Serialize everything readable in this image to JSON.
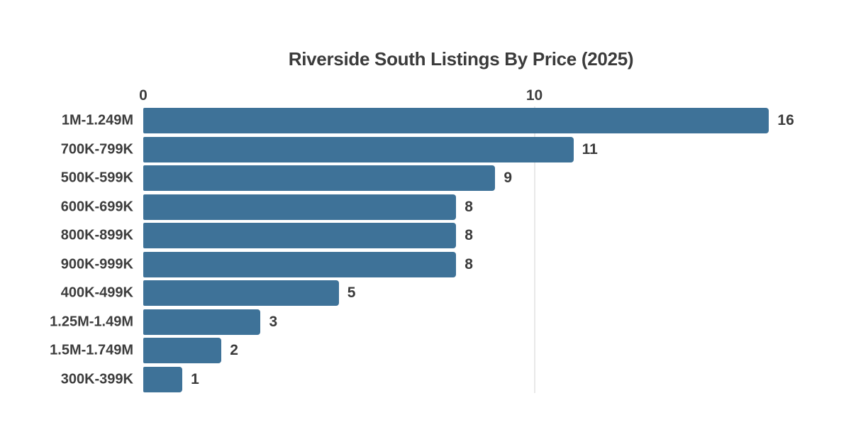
{
  "chart_data": {
    "type": "bar",
    "orientation": "horizontal",
    "title": "Riverside South Listings By Price (2025)",
    "categories": [
      "1M-1.249M",
      "700K-799K",
      "500K-599K",
      "600K-699K",
      "800K-899K",
      "900K-999K",
      "400K-499K",
      "1.25M-1.49M",
      "1.5M-1.749M",
      "300K-399K"
    ],
    "values": [
      16,
      11,
      9,
      8,
      8,
      8,
      5,
      3,
      2,
      1
    ],
    "value_labels_shown": true,
    "xlabel": "",
    "ylabel": "",
    "xlim": [
      0,
      16.2
    ],
    "xticks": [
      0,
      10
    ],
    "grid_ticks": [
      10
    ],
    "legend": null,
    "colors": {
      "bar": "#3E7298",
      "title_text": "#3B3B3B",
      "label_text": "#3D3D3D",
      "gridline": "#E9E9E9",
      "background": "#FFFFFF"
    }
  }
}
